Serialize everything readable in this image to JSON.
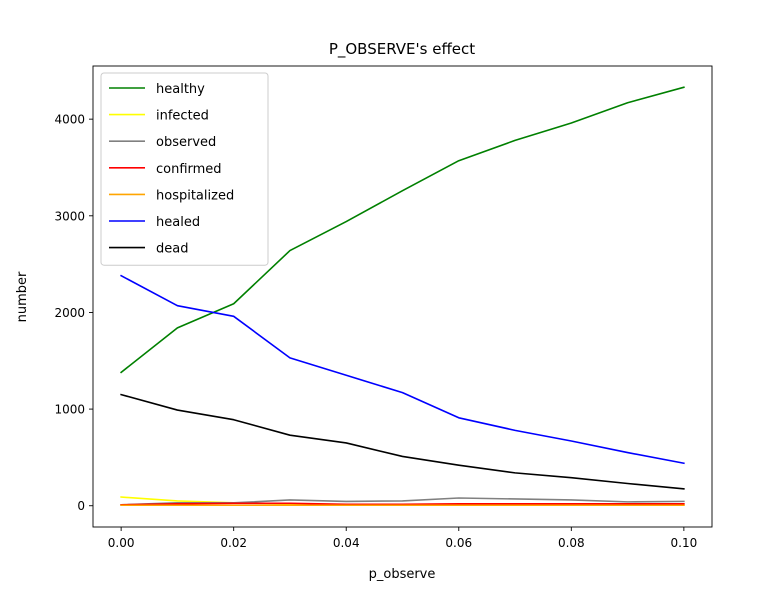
{
  "chart_data": {
    "type": "line",
    "title": "P_OBSERVE's effect",
    "xlabel": "p_observe",
    "ylabel": "number",
    "x": [
      0.0,
      0.01,
      0.02,
      0.03,
      0.04,
      0.05,
      0.06,
      0.07,
      0.08,
      0.09,
      0.1
    ],
    "xlim": [
      -0.005,
      0.105
    ],
    "ylim": [
      -220,
      4550
    ],
    "xticks": [
      0.0,
      0.02,
      0.04,
      0.06,
      0.08,
      0.1
    ],
    "xtick_labels": [
      "0.00",
      "0.02",
      "0.04",
      "0.06",
      "0.08",
      "0.10"
    ],
    "yticks": [
      0,
      1000,
      2000,
      3000,
      4000
    ],
    "ytick_labels": [
      "0",
      "1000",
      "2000",
      "3000",
      "4000"
    ],
    "grid": false,
    "legend_position": "top-left",
    "series": [
      {
        "name": "healthy",
        "color": "#008000",
        "values": [
          1380,
          1840,
          2090,
          2640,
          2940,
          3260,
          3570,
          3780,
          3960,
          4170,
          4330
        ]
      },
      {
        "name": "infected",
        "color": "#ffff00",
        "values": [
          90,
          50,
          30,
          20,
          10,
          10,
          5,
          5,
          5,
          5,
          5
        ]
      },
      {
        "name": "observed",
        "color": "#808080",
        "values": [
          10,
          30,
          30,
          60,
          45,
          50,
          80,
          70,
          60,
          40,
          45
        ]
      },
      {
        "name": "confirmed",
        "color": "#ff0000",
        "values": [
          10,
          20,
          25,
          25,
          15,
          15,
          20,
          20,
          20,
          20,
          20
        ]
      },
      {
        "name": "hospitalized",
        "color": "#ffa500",
        "values": [
          5,
          5,
          5,
          5,
          5,
          5,
          5,
          5,
          5,
          5,
          5
        ]
      },
      {
        "name": "healed",
        "color": "#0000ff",
        "values": [
          2380,
          2070,
          1960,
          1530,
          1350,
          1170,
          910,
          780,
          670,
          550,
          440
        ]
      },
      {
        "name": "dead",
        "color": "#000000",
        "values": [
          1150,
          990,
          890,
          730,
          650,
          510,
          420,
          340,
          290,
          230,
          175
        ]
      }
    ]
  }
}
